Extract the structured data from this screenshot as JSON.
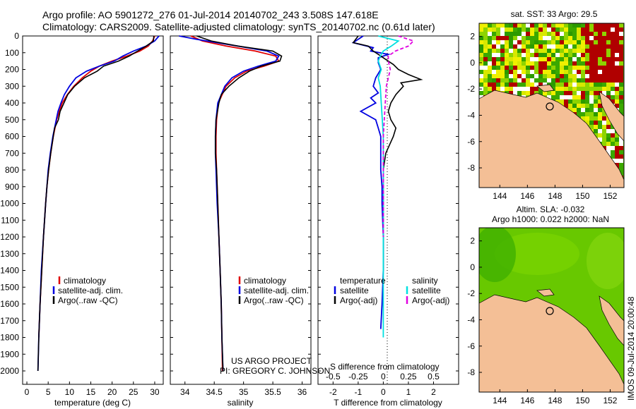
{
  "title_line1": "Argo profile: AO 5901272_276 01-Jul-2014 20140702_243 3.508S 147.618E",
  "title_line2": "Climatology: CARS2009. Satellite-adjusted climatology: synTS_20140702.nc (0.61d later)",
  "project_line1": "US ARGO PROJECT",
  "project_line2": "PI: GREGORY C. JOHNSON",
  "side_stamp": "IMOS 09-Jul-2014 20:00:48",
  "colors": {
    "clim": "#e00000",
    "sat": "#0000e0",
    "argo": "#000000",
    "sat_s": "#00e0e0",
    "argo_s": "#e000e0",
    "land": "#f4bf96"
  },
  "chart_data": [
    {
      "type": "line",
      "name": "temperature",
      "xlabel": "temperature (deg C)",
      "xlim": [
        -1,
        32
      ],
      "ylim": [
        2080,
        0
      ],
      "xticks": [
        "0",
        "5",
        "10",
        "15",
        "20",
        "25",
        "30"
      ],
      "yticks": [
        "0",
        "100",
        "200",
        "300",
        "400",
        "500",
        "600",
        "700",
        "800",
        "900",
        "1000",
        "1100",
        "1200",
        "1300",
        "1400",
        "1500",
        "1600",
        "1700",
        "1800",
        "1900",
        "2000"
      ],
      "legend": [
        "climatology",
        "satellite-adj. clim.",
        "Argo(..raw -QC)"
      ],
      "series": [
        {
          "name": "climatology",
          "color": "#e00000",
          "depth": [
            0,
            30,
            60,
            90,
            120,
            150,
            180,
            210,
            250,
            300,
            350,
            400,
            450,
            500,
            600,
            700,
            800,
            900,
            1000,
            1200,
            1400,
            1600,
            1800
          ],
          "values": [
            30.0,
            29.5,
            28.5,
            26.5,
            23.5,
            20.0,
            17.0,
            15.0,
            13.0,
            11.0,
            9.5,
            8.3,
            7.6,
            7.0,
            6.2,
            5.6,
            5.1,
            4.7,
            4.4,
            3.9,
            3.5,
            3.1,
            2.8
          ]
        },
        {
          "name": "satellite-adj. clim.",
          "color": "#0000e0",
          "depth": [
            0,
            30,
            60,
            90,
            120,
            150,
            180,
            210,
            250,
            300,
            350,
            400,
            450,
            500,
            600,
            700,
            800,
            900,
            1000,
            1200,
            1400,
            1600,
            1800,
            2000
          ],
          "values": [
            31.0,
            30.0,
            28.0,
            25.0,
            22.5,
            20.5,
            17.0,
            14.0,
            11.5,
            10.0,
            8.8,
            8.0,
            7.3,
            6.9,
            6.1,
            5.5,
            5.0,
            4.7,
            4.4,
            3.9,
            3.4,
            3.1,
            2.8,
            2.6
          ]
        },
        {
          "name": "Argo(..raw -QC)",
          "color": "#000000",
          "depth": [
            0,
            30,
            60,
            90,
            120,
            150,
            180,
            210,
            250,
            300,
            350,
            400,
            450,
            500,
            550,
            600,
            700,
            800,
            900,
            1000,
            1200,
            1400,
            1600,
            1800,
            2000
          ],
          "values": [
            29.8,
            29.7,
            28.0,
            26.0,
            24.0,
            21.5,
            18.0,
            16.5,
            13.5,
            11.2,
            9.6,
            8.7,
            7.8,
            7.4,
            6.5,
            6.2,
            5.6,
            5.1,
            4.7,
            4.4,
            3.9,
            3.5,
            3.1,
            2.8,
            2.6
          ]
        }
      ]
    },
    {
      "type": "line",
      "name": "salinity",
      "xlabel": "salinity",
      "xlim": [
        33.75,
        36.15
      ],
      "ylim": [
        2080,
        0
      ],
      "xticks": [
        "34",
        "34.5",
        "35",
        "35.5",
        "36"
      ],
      "legend": [
        "climatology",
        "satellite-adj. clim.",
        "Argo(..raw -QC)"
      ],
      "series": [
        {
          "name": "climatology",
          "color": "#e00000",
          "depth": [
            0,
            30,
            60,
            90,
            120,
            150,
            180,
            210,
            250,
            300,
            400,
            500,
            600,
            700,
            800,
            1000,
            1200,
            1400,
            1600,
            1800,
            2000
          ],
          "values": [
            34.1,
            34.3,
            34.7,
            35.2,
            35.55,
            35.6,
            35.35,
            35.05,
            34.85,
            34.7,
            34.57,
            34.54,
            34.53,
            34.53,
            34.54,
            34.56,
            34.58,
            34.6,
            34.62,
            34.63,
            34.64
          ]
        },
        {
          "name": "satellite-adj. clim.",
          "color": "#0000e0",
          "depth": [
            0,
            20,
            60,
            90,
            120,
            150,
            180,
            210,
            250,
            300,
            400,
            500,
            600,
            700,
            800,
            1000,
            1200,
            1400,
            1600,
            1800,
            2000
          ],
          "values": [
            33.9,
            34.2,
            34.9,
            35.4,
            35.6,
            35.55,
            35.25,
            35.0,
            34.8,
            34.68,
            34.56,
            34.53,
            34.52,
            34.52,
            34.53,
            34.55,
            34.58,
            34.6,
            34.62,
            34.63,
            34.65
          ]
        },
        {
          "name": "Argo(..raw -QC)",
          "color": "#000000",
          "depth": [
            0,
            30,
            60,
            90,
            120,
            150,
            180,
            210,
            250,
            300,
            350,
            400,
            500,
            600,
            700,
            800,
            1000,
            1200,
            1400,
            1600,
            1800,
            2000
          ],
          "values": [
            34.2,
            34.45,
            34.9,
            35.5,
            35.65,
            35.62,
            35.3,
            35.1,
            34.92,
            34.75,
            34.62,
            34.58,
            34.53,
            34.52,
            34.52,
            34.54,
            34.56,
            34.58,
            34.6,
            34.62,
            34.63,
            34.65
          ]
        }
      ]
    },
    {
      "type": "line",
      "name": "differences",
      "xlabel": "T difference from climatology",
      "xlabel2": "S difference from climatology",
      "xlim": [
        -2.6,
        3.0
      ],
      "ylim": [
        2080,
        0
      ],
      "xticks": [
        "-2",
        "-1",
        "0",
        "1",
        "2"
      ],
      "xticks2": [
        "-0.5",
        "-0.25",
        "0",
        "0.25",
        "0.5"
      ],
      "legend_title_t": "temperature",
      "legend_title_s": "salinity",
      "legend": [
        "satellite",
        "Argo(-adj)",
        "satellite",
        "Argo(-adj)"
      ],
      "series": [
        {
          "name": "temperature satellite",
          "color": "#0000e0",
          "depth": [
            0,
            40,
            70,
            90,
            110,
            130,
            160,
            200,
            250,
            300,
            340,
            370,
            400,
            450,
            500,
            550,
            600,
            700,
            800,
            900,
            1000,
            1200,
            1400,
            1600,
            1750
          ],
          "values": [
            -0.8,
            -1.2,
            -0.4,
            -0.5,
            0.2,
            -0.2,
            -0.2,
            -0.1,
            -0.3,
            -0.4,
            -0.2,
            -0.5,
            -0.3,
            -0.9,
            -0.3,
            -0.2,
            -0.1,
            -0.1,
            -0.1,
            -0.05,
            -0.05,
            0,
            0,
            -0.05,
            -0.1
          ]
        },
        {
          "name": "temperature Argo(-adj)",
          "color": "#000000",
          "depth": [
            0,
            40,
            60,
            90,
            110,
            140,
            170,
            200,
            230,
            260,
            280,
            300,
            350,
            400,
            450,
            500,
            550,
            600,
            700,
            800,
            900,
            1000,
            1200,
            1400
          ],
          "values": [
            -1.0,
            -1.2,
            -0.6,
            -0.4,
            -0.2,
            0.1,
            0.4,
            0.6,
            1.0,
            1.5,
            0.7,
            0.8,
            0.5,
            0.3,
            0.2,
            0.3,
            0.5,
            0.4,
            0.1,
            0.0,
            0.0,
            0.0,
            0.0,
            0.0
          ]
        },
        {
          "name": "salinity satellite",
          "color": "#00e0e0",
          "depth": [
            0,
            30,
            60,
            90,
            120,
            150,
            200,
            250,
            300,
            400,
            500,
            600,
            800,
            1000,
            1200,
            1400,
            1600,
            1800
          ],
          "values": [
            -0.05,
            0.15,
            0.08,
            0.0,
            -0.03,
            -0.05,
            -0.02,
            -0.05,
            -0.03,
            -0.02,
            -0.01,
            0.0,
            0.0,
            0.0,
            0.0,
            0.0,
            0.0,
            0.0
          ]
        },
        {
          "name": "salinity Argo(-adj)",
          "color": "#e000e0",
          "depth": [
            0,
            30,
            60,
            90,
            120,
            150,
            200,
            250,
            300,
            400,
            500,
            600,
            800,
            1000,
            1200
          ],
          "values": [
            0.15,
            0.3,
            0.25,
            0.12,
            0.05,
            0.05,
            0.07,
            0.05,
            0.03,
            0.02,
            0.01,
            0.0,
            0.0,
            0.0,
            0.0
          ]
        }
      ]
    },
    {
      "type": "heatmap",
      "name": "sat SST map",
      "title": "sat. SST: 33 Argo: 29.5",
      "xlim": [
        142.5,
        153.0
      ],
      "ylim": [
        -9.5,
        3.0
      ],
      "xticks": [
        "144",
        "146",
        "148",
        "150",
        "152"
      ],
      "yticks": [
        "2",
        "0",
        "-2",
        "-4",
        "-6",
        "-8"
      ]
    },
    {
      "type": "heatmap",
      "name": "altimetry map",
      "title": "Altim. SLA: -0.032",
      "title2": "Argo h1000: 0.022 h2000: NaN",
      "xlim": [
        142.5,
        153.0
      ],
      "ylim": [
        -9.5,
        3.0
      ],
      "xticks": [
        "144",
        "146",
        "148",
        "150",
        "152"
      ],
      "yticks": [
        "2",
        "0",
        "-2",
        "-4",
        "-6",
        "-8"
      ]
    }
  ]
}
